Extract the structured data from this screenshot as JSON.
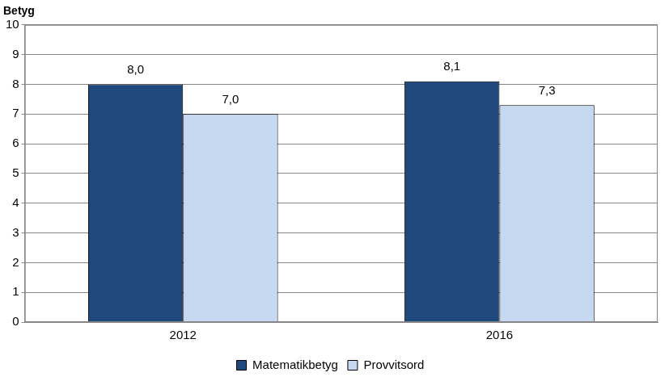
{
  "chart_data": {
    "type": "bar",
    "ylabel": "Betyg",
    "categories": [
      "2012",
      "2016"
    ],
    "series": [
      {
        "name": "Matematikbetyg",
        "color": "#1f497d",
        "values": [
          8.0,
          8.1
        ],
        "value_labels": [
          "8,0",
          "8,1"
        ]
      },
      {
        "name": "Provvitsord",
        "color": "#c6d9f1",
        "values": [
          7.0,
          7.3
        ],
        "value_labels": [
          "7,0",
          "7,3"
        ]
      }
    ],
    "ylim": [
      0,
      10
    ],
    "yticks": [
      0,
      1,
      2,
      3,
      4,
      5,
      6,
      7,
      8,
      9,
      10
    ],
    "grid": true,
    "legend": "bottom",
    "data_labels": true
  }
}
